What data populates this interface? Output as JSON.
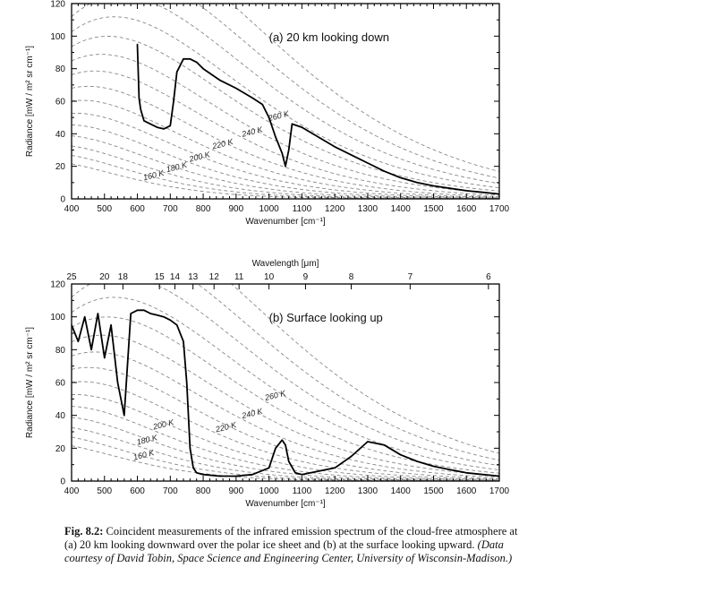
{
  "chart_data": [
    {
      "type": "line",
      "panel_label": "(a)  20 km looking down",
      "xlabel": "Wavenumber [cm⁻¹]",
      "ylabel": "Radiance [mW / m² sr cm⁻¹]",
      "xlim": [
        400,
        1700
      ],
      "ylim": [
        0,
        120
      ],
      "x_ticks": [
        400,
        500,
        600,
        700,
        800,
        900,
        1000,
        1100,
        1200,
        1300,
        1400,
        1500,
        1600,
        1700
      ],
      "y_ticks": [
        0,
        20,
        40,
        60,
        80,
        100,
        120
      ],
      "reference_curves": {
        "description_shown": "dashed blackbody curves",
        "temperatures_labeled": [
          "160 K",
          "180 K",
          "200 K",
          "220 K",
          "240 K",
          "260 K"
        ],
        "label_x": [
          620,
          690,
          760,
          830,
          920,
          1000
        ]
      },
      "series": [
        {
          "style": "solid",
          "x": [
            600,
            605,
            610,
            620,
            640,
            660,
            680,
            700,
            710,
            720,
            740,
            760,
            780,
            800,
            850,
            900,
            950,
            980,
            1000,
            1020,
            1040,
            1050,
            1060,
            1070,
            1100,
            1150,
            1200,
            1250,
            1300,
            1350,
            1400,
            1450,
            1500,
            1550,
            1600,
            1650,
            1700
          ],
          "y": [
            95,
            62,
            55,
            48,
            46,
            44,
            43,
            45,
            60,
            78,
            86,
            86,
            84,
            80,
            73,
            68,
            62,
            58,
            50,
            38,
            28,
            20,
            30,
            46,
            44,
            38,
            32,
            27,
            22,
            17,
            13,
            10,
            8,
            6.5,
            5,
            4,
            3
          ]
        }
      ],
      "grid": false
    },
    {
      "type": "line",
      "panel_label": "(b) Surface looking up",
      "xlabel": "Wavenumber [cm⁻¹]",
      "ylabel": "Radiance [mW / m² sr cm⁻¹]",
      "top_axis_label": "Wavelength [μm]",
      "top_ticks": [
        {
          "label": "25",
          "wavenumber": 400
        },
        {
          "label": "20",
          "wavenumber": 500
        },
        {
          "label": "18",
          "wavenumber": 556
        },
        {
          "label": "15",
          "wavenumber": 667
        },
        {
          "label": "14",
          "wavenumber": 714
        },
        {
          "label": "13",
          "wavenumber": 769
        },
        {
          "label": "12",
          "wavenumber": 833
        },
        {
          "label": "11",
          "wavenumber": 909
        },
        {
          "label": "10",
          "wavenumber": 1000
        },
        {
          "label": "9",
          "wavenumber": 1111
        },
        {
          "label": "8",
          "wavenumber": 1250
        },
        {
          "label": "7",
          "wavenumber": 1429
        },
        {
          "label": "6",
          "wavenumber": 1667
        }
      ],
      "xlim": [
        400,
        1700
      ],
      "ylim": [
        0,
        120
      ],
      "x_ticks": [
        400,
        500,
        600,
        700,
        800,
        900,
        1000,
        1100,
        1200,
        1300,
        1400,
        1500,
        1600,
        1700
      ],
      "y_ticks": [
        0,
        20,
        40,
        60,
        80,
        100,
        120
      ],
      "reference_curves": {
        "description_shown": "dashed blackbody curves",
        "temperatures_labeled": [
          "160 K",
          "180 K",
          "200 K",
          "220 K",
          "240 K",
          "260 K"
        ],
        "label_x": [
          590,
          600,
          650,
          840,
          920,
          990
        ]
      },
      "series": [
        {
          "style": "solid",
          "x": [
            400,
            420,
            440,
            460,
            480,
            500,
            520,
            540,
            560,
            580,
            600,
            620,
            640,
            660,
            680,
            700,
            720,
            740,
            750,
            760,
            770,
            780,
            800,
            850,
            900,
            950,
            1000,
            1020,
            1040,
            1050,
            1060,
            1080,
            1100,
            1150,
            1200,
            1250,
            1300,
            1350,
            1400,
            1450,
            1500,
            1550,
            1600,
            1650,
            1700
          ],
          "y": [
            95,
            85,
            100,
            80,
            102,
            75,
            95,
            60,
            40,
            102,
            104,
            104,
            102,
            101,
            100,
            98,
            95,
            85,
            60,
            20,
            8,
            5,
            4,
            3,
            3,
            4,
            8,
            20,
            25,
            22,
            12,
            5,
            4,
            6,
            8,
            15,
            24,
            22,
            16,
            12,
            9,
            7,
            5,
            4,
            3
          ]
        }
      ],
      "grid": false
    }
  ],
  "caption": {
    "lead": "Fig. 8.2:",
    "text": " Coincident measurements of the infrared emission spectrum of the cloud-free atmosphere at (a) 20 km looking downward over the polar ice sheet and (b) at the surface looking upward. ",
    "credit": "(Data courtesy of David Tobin, Space Science and Engineering Center, University of Wisconsin-Madison.)"
  }
}
